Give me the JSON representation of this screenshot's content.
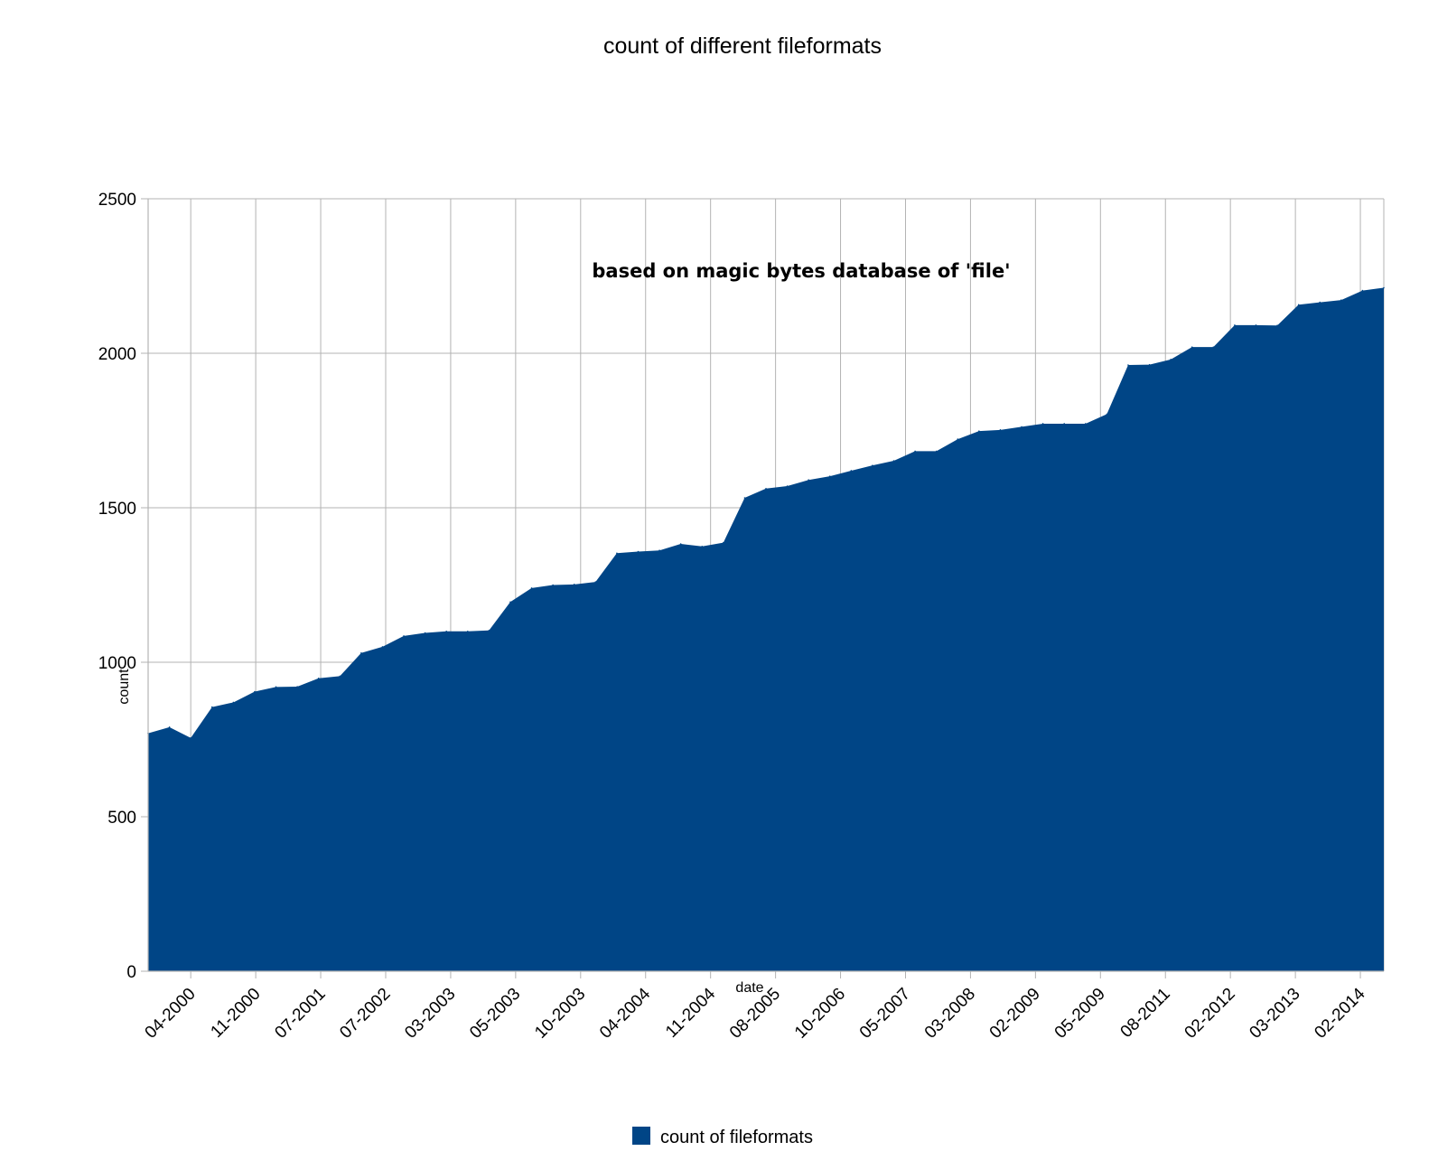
{
  "chart_data": {
    "type": "area",
    "title": "count of different fileformats",
    "annotation": "based on magic bytes database of 'file'",
    "xlabel": "date",
    "ylabel": "count",
    "ylim": [
      0,
      2500
    ],
    "yticks": [
      0,
      500,
      1000,
      1500,
      2000,
      2500
    ],
    "grid": true,
    "legend_position": "bottom",
    "colors": {
      "area": "#004586",
      "grid": "#b3b3b3",
      "axis": "#b3b3b3"
    },
    "x_tick_labels": [
      "04-2000",
      "11-2000",
      "07-2001",
      "07-2002",
      "03-2003",
      "05-2003",
      "10-2003",
      "04-2004",
      "11-2004",
      "08-2005",
      "10-2006",
      "05-2007",
      "03-2008",
      "02-2009",
      "05-2009",
      "08-2011",
      "02-2012",
      "03-2013",
      "02-2014"
    ],
    "series": [
      {
        "name": "count of fileformats",
        "values": [
          770,
          790,
          755,
          855,
          870,
          905,
          920,
          921,
          948,
          955,
          1030,
          1050,
          1085,
          1095,
          1100,
          1100,
          1103,
          1195,
          1240,
          1250,
          1252,
          1260,
          1353,
          1358,
          1362,
          1383,
          1375,
          1387,
          1532,
          1562,
          1570,
          1590,
          1602,
          1620,
          1637,
          1652,
          1683,
          1683,
          1722,
          1748,
          1752,
          1762,
          1772,
          1772,
          1772,
          1803,
          1962,
          1963,
          1980,
          2020,
          2020,
          2091,
          2091,
          2090,
          2157,
          2165,
          2172,
          2203,
          2212
        ]
      }
    ]
  }
}
